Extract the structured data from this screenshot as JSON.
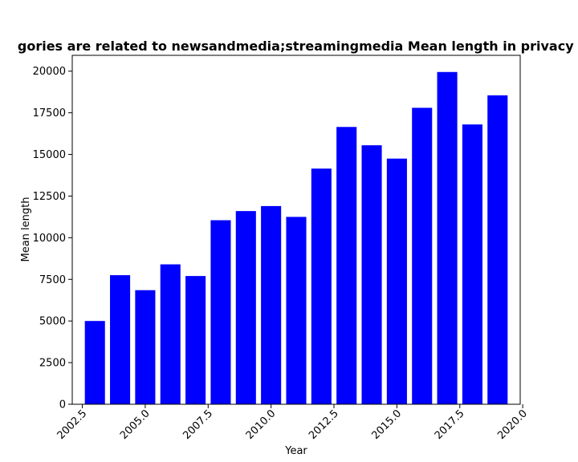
{
  "chart_data": {
    "type": "bar",
    "title": "Mean length of privacy policies of apps whose categories are related to newsandmedia;streamingmedia Mean length in privacy policies",
    "title_visible": "gories are related to newsandmedia;streamingmedia Mean length in privacy pol",
    "xlabel": "Year",
    "ylabel": "Mean length",
    "x": [
      2003,
      2004,
      2005,
      2006,
      2007,
      2008,
      2009,
      2010,
      2011,
      2012,
      2013,
      2014,
      2015,
      2016,
      2017,
      2018,
      2019
    ],
    "values": [
      5000,
      7750,
      6850,
      8400,
      7700,
      11050,
      11600,
      11900,
      11250,
      14150,
      16650,
      15550,
      14750,
      17800,
      19950,
      16800,
      18550
    ],
    "xlim": [
      2002.1,
      2019.9
    ],
    "ylim": [
      0,
      20950
    ],
    "xticks": [
      "2002.5",
      "2005.0",
      "2007.5",
      "2010.0",
      "2012.5",
      "2015.0",
      "2017.5",
      "2020.0"
    ],
    "yticks": [
      "0",
      "2500",
      "5000",
      "7500",
      "10000",
      "12500",
      "15000",
      "17500",
      "20000"
    ],
    "bar_color": "#0000ff",
    "grid": false,
    "legend": "none"
  }
}
